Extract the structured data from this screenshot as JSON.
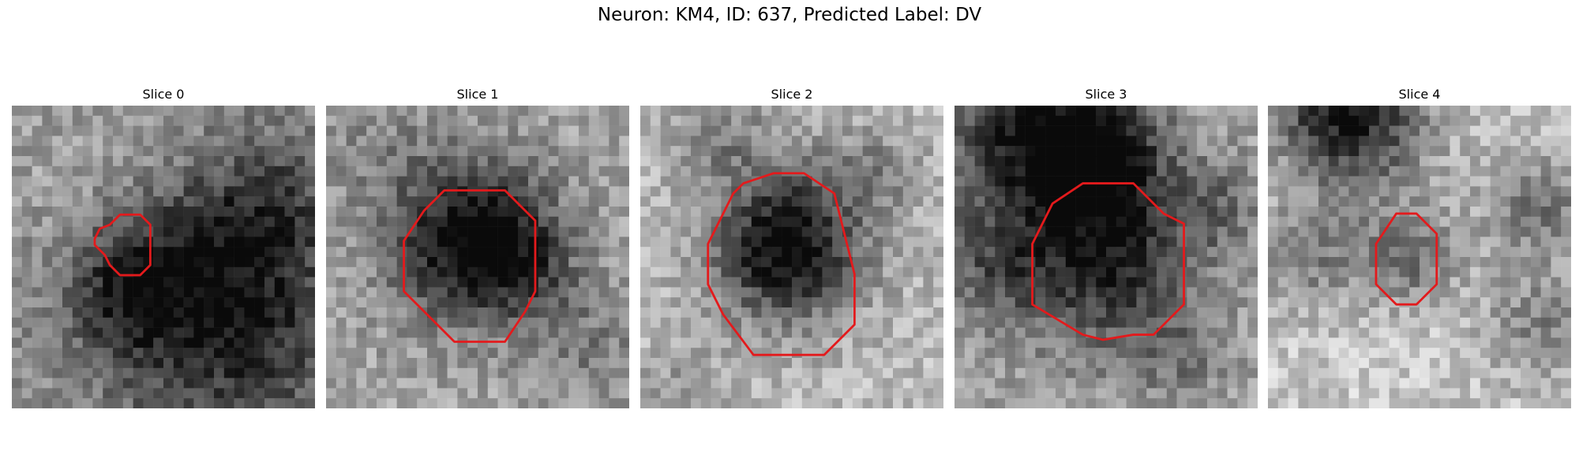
{
  "figure": {
    "title": "Neuron: KM4, ID: 637, Predicted Label: DV",
    "outline_color": "#e31a1c",
    "slices": [
      {
        "title": "Slice 0",
        "image_desc": "grayscale-em-slice",
        "seed": 11
      },
      {
        "title": "Slice 1",
        "image_desc": "grayscale-em-slice",
        "seed": 23
      },
      {
        "title": "Slice 2",
        "image_desc": "grayscale-em-slice",
        "seed": 37
      },
      {
        "title": "Slice 3",
        "image_desc": "grayscale-em-slice",
        "seed": 51
      },
      {
        "title": "Slice 4",
        "image_desc": "grayscale-em-slice",
        "seed": 67
      }
    ]
  }
}
